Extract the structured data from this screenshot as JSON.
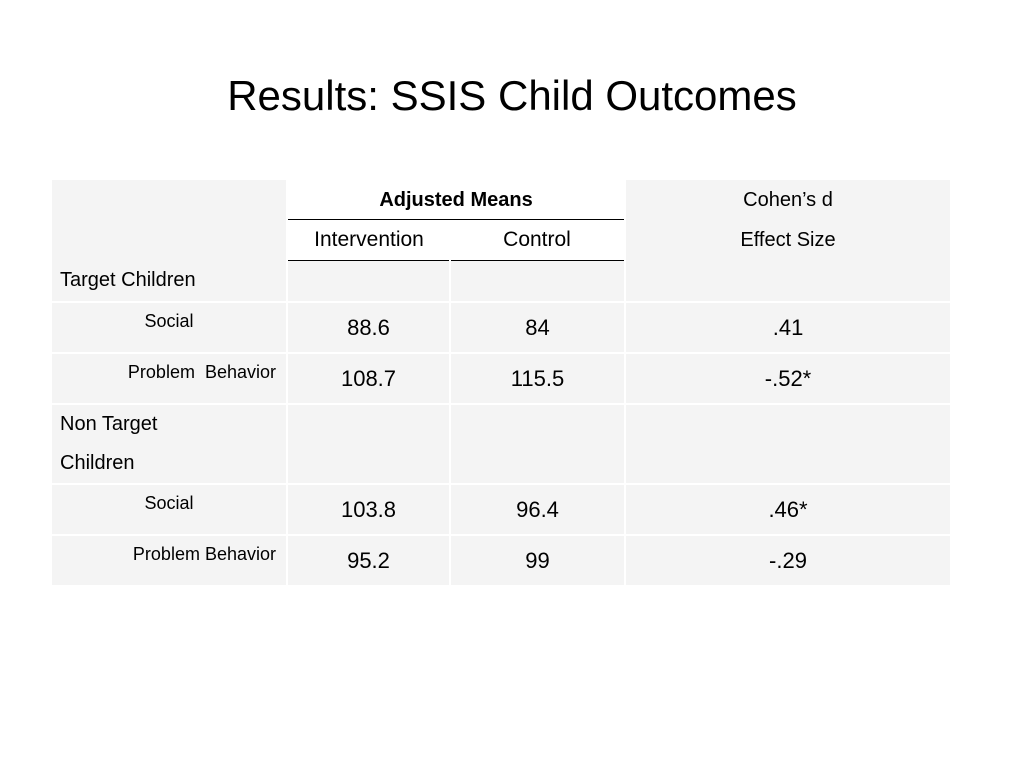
{
  "slide": {
    "title": "Results: SSIS Child Outcomes"
  },
  "table": {
    "header": {
      "adjusted_means": "Adjusted Means",
      "intervention": "Intervention",
      "control": "Control",
      "cohens_d_line1": "Cohen’s d",
      "cohens_d_line2": "Effect Size"
    },
    "groups": [
      {
        "label": "Target Children",
        "rows": [
          {
            "label": "Social",
            "intervention": "88.6",
            "control": "84",
            "effect": ".41"
          },
          {
            "label": "Problem  Behavior",
            "intervention": "108.7",
            "control": "115.5",
            "effect": "-.52*"
          }
        ]
      },
      {
        "label_line1": "Non Target",
        "label_line2": "Children",
        "rows": [
          {
            "label": "Social",
            "intervention": "103.8",
            "control": "96.4",
            "effect": ".46*"
          },
          {
            "label": "Problem Behavior",
            "intervention": "95.2",
            "control": "99",
            "effect": "-.29"
          }
        ]
      }
    ]
  },
  "colors": {
    "cell_background": "#f4f4f4",
    "rule_line": "#000000",
    "text": "#000000"
  }
}
